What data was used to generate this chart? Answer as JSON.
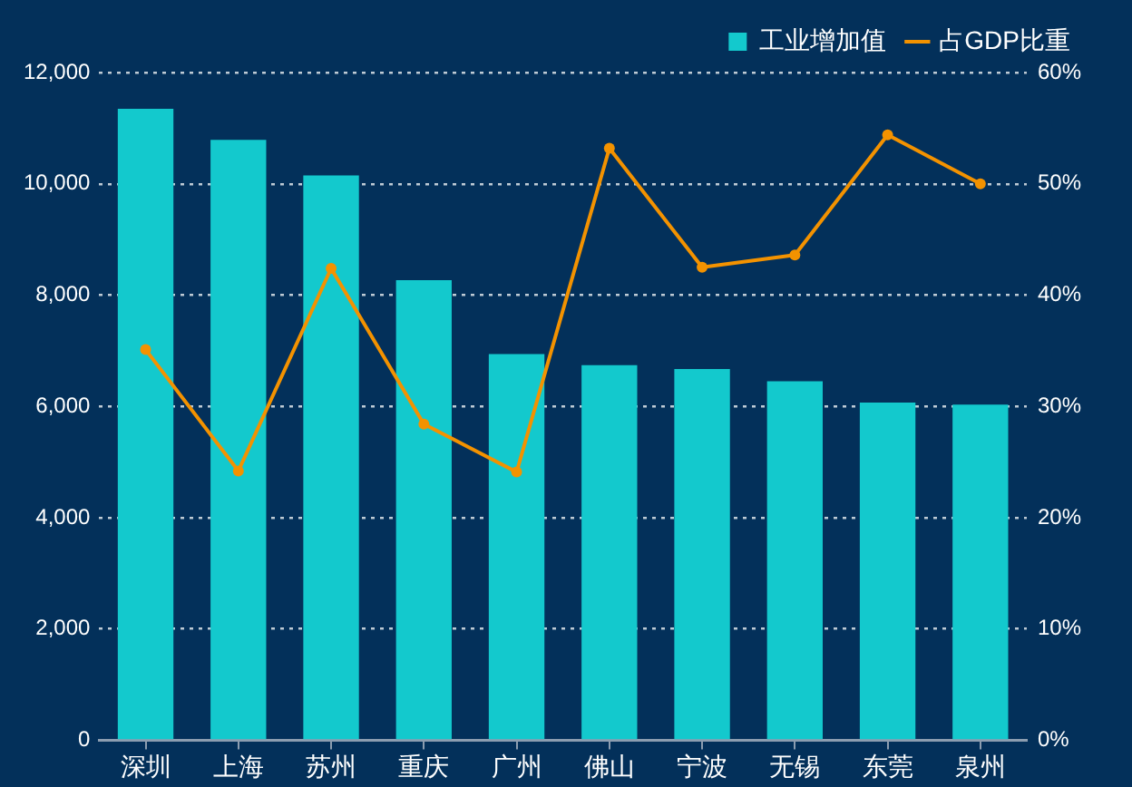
{
  "chart_data": {
    "type": "bar",
    "categories": [
      "深圳",
      "上海",
      "苏州",
      "重庆",
      "广州",
      "佛山",
      "宁波",
      "无锡",
      "东莞",
      "泉州"
    ],
    "series": [
      {
        "name": "工业增加值",
        "color": "#13c9cd",
        "values": [
          11350,
          10790,
          10150,
          8270,
          6940,
          6740,
          6670,
          6450,
          6070,
          6030
        ]
      },
      {
        "name": "占GDP比重",
        "type": "line",
        "axis": "y2",
        "color": "#f39200",
        "values": [
          35.1,
          24.2,
          42.4,
          28.4,
          24.1,
          53.2,
          42.5,
          43.6,
          54.4,
          50.0
        ]
      }
    ],
    "ylim": [
      0,
      12000
    ],
    "yticks": [
      0,
      {
        "value": 2000,
        "label": "2,000"
      },
      {
        "value": 4000,
        "label": "4,000"
      },
      {
        "value": 6000,
        "label": "6,000"
      },
      {
        "value": 8000,
        "label": "8,000"
      },
      {
        "value": 10000,
        "label": "10,000"
      },
      {
        "value": 12000,
        "label": "12,000"
      }
    ],
    "y2lim": [
      0,
      60
    ],
    "y2ticks": [
      {
        "value": 0,
        "label": "0%"
      },
      {
        "value": 10,
        "label": "10%"
      },
      {
        "value": 20,
        "label": "20%"
      },
      {
        "value": 30,
        "label": "30%"
      },
      {
        "value": 40,
        "label": "40%"
      },
      {
        "value": 50,
        "label": "50%"
      },
      {
        "value": 60,
        "label": "60%"
      }
    ],
    "grid": "y",
    "legend": "top right",
    "marker": "circle"
  }
}
